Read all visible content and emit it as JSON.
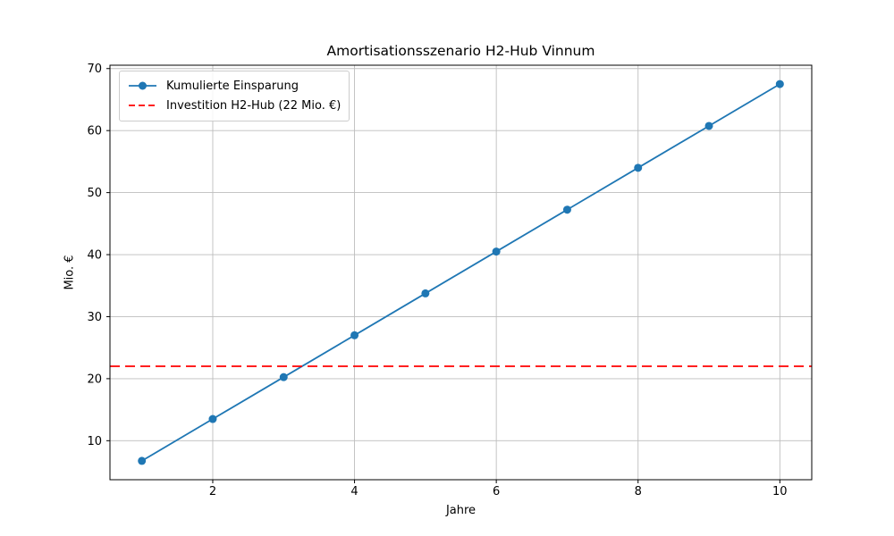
{
  "chart_data": {
    "type": "line",
    "title": "Amortisationsszenario H2-Hub Vinnum",
    "xlabel": "Jahre",
    "ylabel": "Mio. €",
    "x": [
      1,
      2,
      3,
      4,
      5,
      6,
      7,
      8,
      9,
      10
    ],
    "series": [
      {
        "name": "Kumulierte Einsparung",
        "type": "line",
        "values": [
          6.75,
          13.5,
          20.25,
          27.0,
          33.75,
          40.5,
          47.25,
          54.0,
          60.75,
          67.5
        ],
        "color": "#1f77b4",
        "line_style": "solid",
        "marker": "circle"
      },
      {
        "name": "Investition H2-Hub (22 Mio. €)",
        "type": "hline",
        "value": 22,
        "color": "#ff0000",
        "line_style": "dashed",
        "marker": "none"
      }
    ],
    "x_ticks": [
      2,
      4,
      6,
      8,
      10
    ],
    "y_ticks": [
      10,
      20,
      30,
      40,
      50,
      60,
      70
    ],
    "xlim": [
      0.55,
      10.45
    ],
    "ylim": [
      3.71,
      70.54
    ],
    "grid": true,
    "grid_color": "#bdbdbd",
    "frame_color": "#000000",
    "legend_position": "upper-left"
  }
}
